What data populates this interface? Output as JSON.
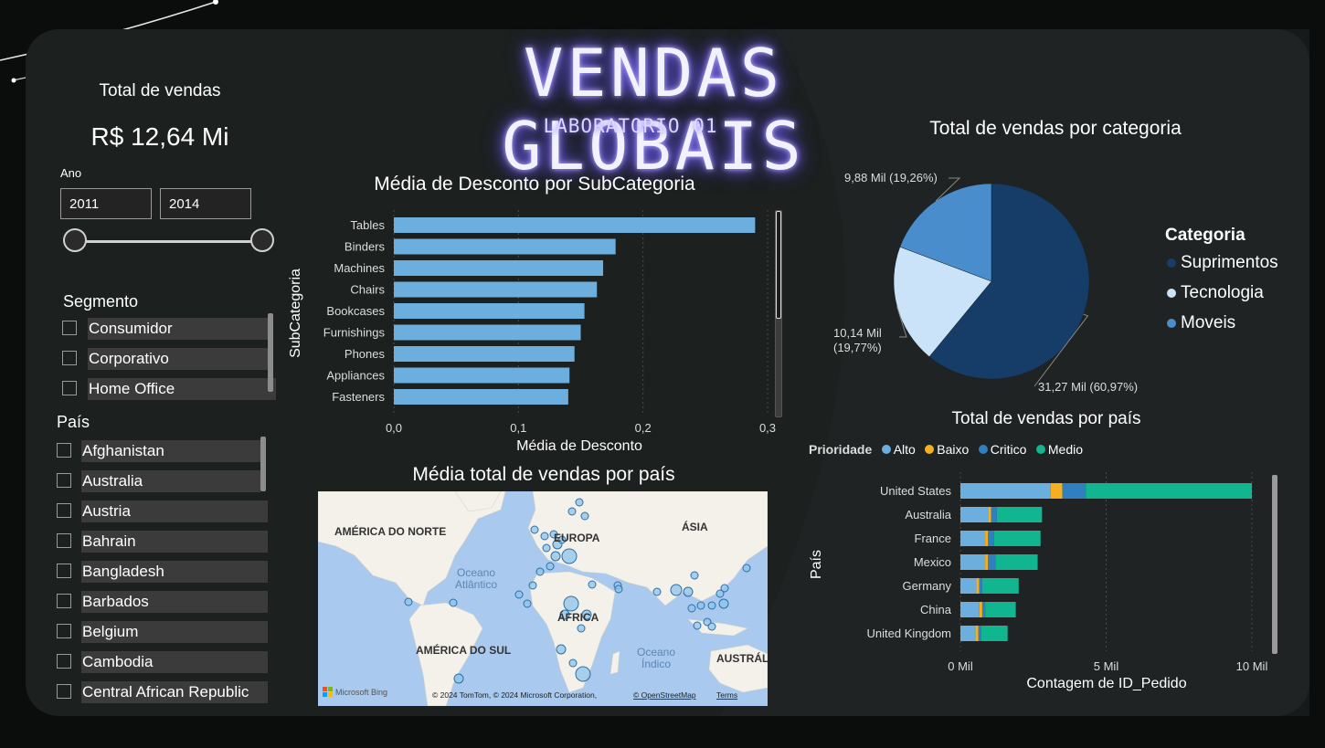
{
  "header": {
    "title": "VENDAS GLOBAIS",
    "subtitle": "LABORATORIO 01"
  },
  "kpi": {
    "label": "Total de vendas",
    "value": "R$ 12,64 Mi"
  },
  "year_filter": {
    "label": "Ano",
    "start": "2011",
    "end": "2014"
  },
  "segment_slicer": {
    "title": "Segmento",
    "items": [
      "Consumidor",
      "Corporativo",
      "Home Office"
    ]
  },
  "country_slicer": {
    "title": "País",
    "items": [
      "Afghanistan",
      "Australia",
      "Austria",
      "Bahrain",
      "Bangladesh",
      "Barbados",
      "Belgium",
      "Cambodia",
      "Central African Republic"
    ]
  },
  "colors": {
    "bar": "#6cafdf",
    "alto": "#6cafdf",
    "baixo": "#f5b021",
    "critico": "#2f7fc1",
    "medio": "#11b58f",
    "pie_suprimentos": "#163d68",
    "pie_tecnologia": "#cbe3f8",
    "pie_moveis": "#4a8dcc"
  },
  "discount_chart": {
    "title": "Média de Desconto por SubCategoria",
    "chart_data": {
      "type": "bar",
      "orientation": "horizontal",
      "title": "Média de Desconto por SubCategoria",
      "xlabel": "Média de Desconto",
      "ylabel": "SubCategoria",
      "categories": [
        "Tables",
        "Binders",
        "Machines",
        "Chairs",
        "Bookcases",
        "Furnishings",
        "Phones",
        "Appliances",
        "Fasteners"
      ],
      "values": [
        0.29,
        0.178,
        0.168,
        0.163,
        0.153,
        0.15,
        0.145,
        0.141,
        0.14
      ],
      "xlim": [
        0,
        0.3
      ],
      "xticks": [
        "0,0",
        "0,1",
        "0,2",
        "0,3"
      ],
      "xtick_values": [
        0,
        0.1,
        0.2,
        0.3
      ],
      "grid": true
    }
  },
  "map_chart": {
    "title": "Média total de vendas por país",
    "labels": {
      "north_america": "AMÉRICA DO NORTE",
      "europe": "EUROPA",
      "asia": "ÁSIA",
      "africa": "ÁFRICA",
      "south_america": "AMÉRICA DO SUL",
      "atlantic_1": "Oceano",
      "atlantic_2": "Atlântico",
      "indian_1": "Oceano",
      "indian_2": "Índico",
      "oceania": "AUSTRÁL"
    },
    "bing": "Microsoft Bing",
    "attribution": "© 2024 TomTom, © 2024 Microsoft Corporation,",
    "osm": "© OpenStreetMap",
    "terms": "Terms"
  },
  "category_chart": {
    "title": "Total de vendas por categoria",
    "legend_title": "Categoria",
    "chart_data": {
      "type": "pie",
      "title": "Total de vendas por categoria",
      "legend_title": "Categoria",
      "legend_position": "right",
      "slices": [
        {
          "name": "Suprimentos",
          "value": 31.27,
          "label": "31,27 Mil (60,97%)"
        },
        {
          "name": "Tecnologia",
          "value": 10.14,
          "label_line1": "10,14 Mil",
          "label_line2": "(19,77%)"
        },
        {
          "name": "Moveis",
          "value": 9.88,
          "label": "9,88 Mil (19,26%)"
        }
      ]
    }
  },
  "country_chart": {
    "title": "Total de vendas por país",
    "legend_title": "Prioridade",
    "chart_data": {
      "type": "bar",
      "orientation": "horizontal",
      "stacked": true,
      "title": "Total de vendas por país",
      "xlabel": "Contagem de ID_Pedido",
      "ylabel": "País",
      "legend_title": "Prioridade",
      "legend_position": "top-left",
      "categories": [
        "United States",
        "Australia",
        "France",
        "Mexico",
        "Germany",
        "China",
        "United Kingdom"
      ],
      "series": [
        {
          "name": "Alto",
          "values": [
            3.1,
            0.95,
            0.85,
            0.85,
            0.55,
            0.65,
            0.52
          ]
        },
        {
          "name": "Baixo",
          "values": [
            0.4,
            0.1,
            0.1,
            0.1,
            0.1,
            0.1,
            0.1
          ]
        },
        {
          "name": "Critico",
          "values": [
            0.8,
            0.2,
            0.2,
            0.25,
            0.1,
            0.1,
            0.1
          ]
        },
        {
          "name": "Medio",
          "values": [
            5.7,
            1.55,
            1.6,
            1.45,
            1.25,
            1.05,
            0.9
          ]
        }
      ],
      "xlim": [
        0,
        10
      ],
      "xticks": [
        "0 Mil",
        "5 Mil",
        "10 Mil"
      ],
      "xtick_values": [
        0,
        5,
        10
      ],
      "grid": true
    }
  }
}
